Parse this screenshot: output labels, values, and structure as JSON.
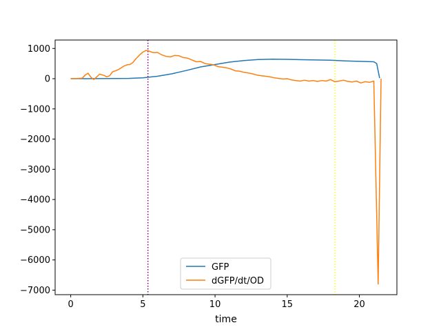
{
  "chart_data": {
    "type": "line",
    "xlabel": "time",
    "ylabel": "",
    "title": "",
    "xlim": [
      -1.08,
      22.6
    ],
    "ylim": [
      -7150,
      1280
    ],
    "xticks": [
      0,
      5,
      10,
      15,
      20
    ],
    "xtick_labels": [
      "0",
      "5",
      "10",
      "15",
      "20"
    ],
    "yticks": [
      1000,
      0,
      -1000,
      -2000,
      -3000,
      -4000,
      -5000,
      -6000,
      -7000
    ],
    "ytick_labels": [
      "1000",
      "0",
      "−1000",
      "−2000",
      "−3000",
      "−4000",
      "−5000",
      "−6000",
      "−7000"
    ],
    "grid": false,
    "legend_placement": "lower center",
    "vlines": [
      {
        "x": 5.35,
        "color": "#800080",
        "style": "dotted"
      },
      {
        "x": 18.3,
        "color": "#ffff00",
        "style": "dotted"
      }
    ],
    "series": [
      {
        "name": "GFP",
        "color": "#1f77b4",
        "x": [
          0,
          1,
          2,
          3,
          4,
          5,
          6,
          7,
          8,
          9,
          10,
          11,
          12,
          13,
          14,
          15,
          16,
          17,
          18,
          19,
          20,
          21,
          21.2,
          21.4
        ],
        "y": [
          0,
          0,
          2,
          5,
          10,
          30,
          80,
          160,
          270,
          390,
          470,
          550,
          600,
          635,
          645,
          640,
          630,
          620,
          610,
          590,
          575,
          560,
          500,
          20
        ]
      },
      {
        "name": "dGFP/dt/OD",
        "color": "#ff7f0e",
        "x": [
          0,
          0.5,
          0.8,
          1.0,
          1.2,
          1.4,
          1.6,
          1.8,
          2.0,
          2.3,
          2.5,
          2.7,
          2.9,
          3.1,
          3.3,
          3.5,
          3.7,
          3.9,
          4.1,
          4.3,
          4.5,
          4.8,
          5.0,
          5.2,
          5.4,
          5.6,
          5.8,
          6.0,
          6.3,
          6.6,
          6.9,
          7.2,
          7.5,
          7.8,
          8.1,
          8.4,
          8.7,
          9.0,
          9.3,
          9.6,
          9.9,
          10.2,
          10.5,
          10.8,
          11.1,
          11.4,
          11.7,
          12.0,
          12.3,
          12.6,
          12.9,
          13.2,
          13.5,
          13.8,
          14.1,
          14.4,
          14.7,
          15.0,
          15.3,
          15.6,
          15.9,
          16.2,
          16.5,
          16.8,
          17.1,
          17.4,
          17.7,
          18.0,
          18.3,
          18.6,
          18.9,
          19.2,
          19.5,
          19.8,
          20.1,
          20.4,
          20.7,
          21.0,
          21.3,
          21.5
        ],
        "y": [
          0,
          5,
          20,
          120,
          180,
          50,
          -30,
          60,
          150,
          110,
          60,
          100,
          230,
          260,
          300,
          360,
          420,
          460,
          470,
          530,
          650,
          800,
          880,
          930,
          920,
          880,
          860,
          870,
          790,
          740,
          720,
          770,
          760,
          700,
          680,
          620,
          560,
          570,
          500,
          480,
          460,
          400,
          380,
          360,
          320,
          260,
          250,
          210,
          190,
          160,
          120,
          100,
          80,
          60,
          30,
          10,
          -10,
          0,
          -40,
          -60,
          -80,
          -50,
          -80,
          -60,
          -90,
          -60,
          -80,
          -30,
          -100,
          -80,
          -50,
          -90,
          -110,
          -80,
          -140,
          -100,
          -120,
          -80,
          -6800,
          0
        ]
      }
    ]
  }
}
